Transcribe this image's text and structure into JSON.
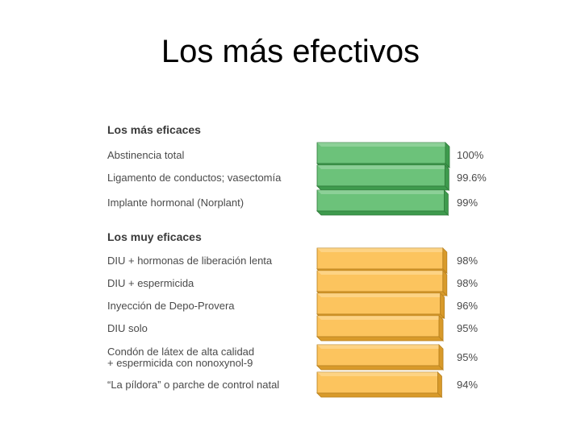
{
  "slide": {
    "title": "Los más efectivos"
  },
  "colors": {
    "green_front": "#6cc27a",
    "green_top": "#a8dcae",
    "green_side": "#3e9a4d",
    "green_stroke": "#2f7a3a",
    "orange_front": "#fcc45e",
    "orange_top": "#fde0a4",
    "orange_side": "#d89a2a",
    "orange_stroke": "#b7801f",
    "label_text": "#4a4a4a",
    "heading_text": "#3a3a3a"
  },
  "chart_data": {
    "type": "bar",
    "orientation": "horizontal",
    "value_unit": "%",
    "xlim": [
      0,
      100
    ],
    "groups": [
      {
        "heading": "Los más eficaces",
        "color": "green",
        "items": [
          {
            "label_lines": [
              "Abstinencia total"
            ],
            "value": 100,
            "value_label": "100%"
          },
          {
            "label_lines": [
              "Ligamento de conductos; vasectomía"
            ],
            "value": 99.6,
            "value_label": "99.6%"
          },
          {
            "label_lines": [
              "Implante hormonal (Norplant)"
            ],
            "value": 99,
            "value_label": "99%"
          }
        ]
      },
      {
        "heading": "Los muy eficaces",
        "color": "orange",
        "items": [
          {
            "label_lines": [
              "DIU + hormonas de liberación lenta"
            ],
            "value": 98,
            "value_label": "98%"
          },
          {
            "label_lines": [
              "DIU + espermicida"
            ],
            "value": 98,
            "value_label": "98%"
          },
          {
            "label_lines": [
              "Inyección de Depo-Provera"
            ],
            "value": 96,
            "value_label": "96%"
          },
          {
            "label_lines": [
              "DIU solo"
            ],
            "value": 95,
            "value_label": "95%"
          },
          {
            "label_lines": [
              "Condón de látex de alta calidad",
              "+ espermicida con nonoxynol-9"
            ],
            "value": 95,
            "value_label": "95%"
          },
          {
            "label_lines": [
              "“La píldora” o parche de control natal"
            ],
            "value": 94,
            "value_label": "94%"
          }
        ]
      }
    ]
  }
}
